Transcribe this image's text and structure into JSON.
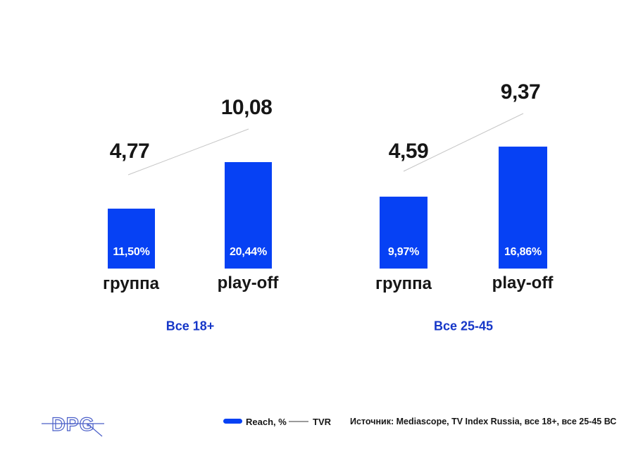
{
  "colors": {
    "bar_blue": "#0641F4",
    "audience_blue": "#1637C8",
    "text_black": "#161616",
    "tvr_line_gray": "#c6c6c6",
    "legend_line_gray": "#9b9b9b",
    "logo_blue": "#4a5fc8"
  },
  "chart_data": [
    {
      "type": "bar",
      "title": "Все 18+",
      "categories": [
        "группа",
        "play-off"
      ],
      "series": [
        {
          "name": "Reach, %",
          "values": [
            11.5,
            20.44
          ],
          "display": [
            "11,50%",
            "20,44%"
          ]
        },
        {
          "name": "TVR",
          "values": [
            4.77,
            10.08
          ],
          "display": [
            "4,77",
            "10,08"
          ]
        }
      ],
      "legend_position": "bottom",
      "grid": false,
      "axes_hidden": true
    },
    {
      "type": "bar",
      "title": "Все 25-45",
      "categories": [
        "группа",
        "play-off"
      ],
      "series": [
        {
          "name": "Reach, %",
          "values": [
            9.97,
            16.86
          ],
          "display": [
            "9,97%",
            "16,86%"
          ]
        },
        {
          "name": "TVR",
          "values": [
            4.59,
            9.37
          ],
          "display": [
            "4,59",
            "9,37"
          ]
        }
      ],
      "legend_position": "bottom",
      "grid": false,
      "axes_hidden": true
    }
  ],
  "legend": {
    "items": [
      {
        "label": "Reach, %",
        "swatch": "bar"
      },
      {
        "label": "TVR",
        "swatch": "line"
      }
    ]
  },
  "footer": {
    "source": "Источник: Mediascope, TV Index Russia, все 18+, все 25-45 ВС"
  },
  "brand": {
    "logo_text": "DPG"
  }
}
